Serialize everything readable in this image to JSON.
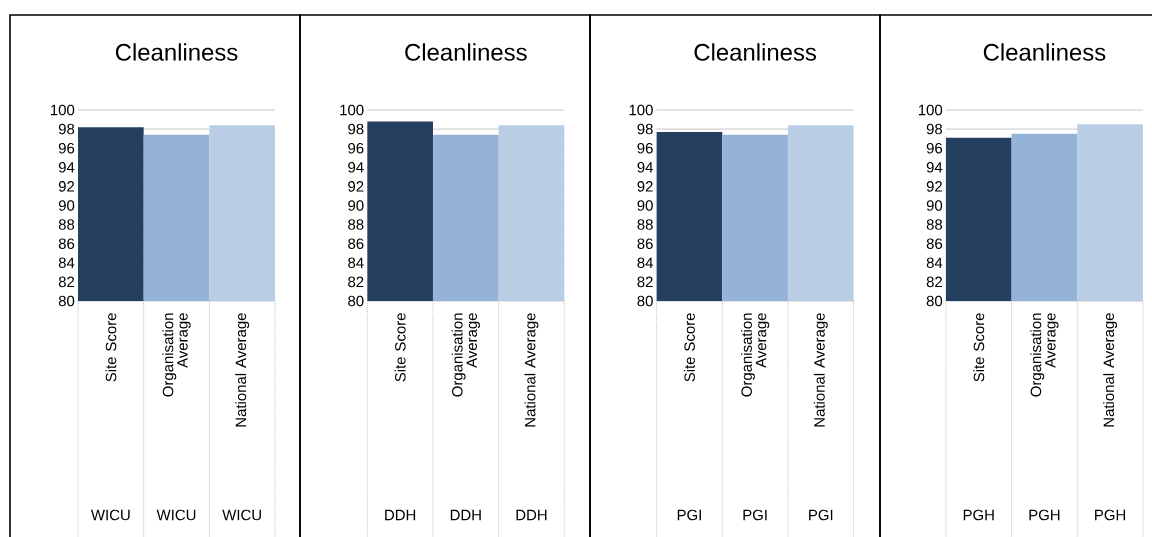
{
  "chart_data": [
    {
      "type": "bar",
      "title": "Cleanliness",
      "categories": [
        "Site Score",
        "Organisation Average",
        "National Average"
      ],
      "values": [
        98.2,
        97.4,
        98.4
      ],
      "colors": [
        "#243f60",
        "#95b3d7",
        "#b9cde5"
      ],
      "ylim": [
        80,
        100
      ],
      "yticks": [
        80,
        82,
        84,
        86,
        88,
        90,
        92,
        94,
        96,
        98,
        100
      ],
      "grid": "y",
      "annotations": [
        "WICU",
        "WICU",
        "WICU"
      ]
    },
    {
      "type": "bar",
      "title": "Cleanliness",
      "categories": [
        "Site Score",
        "Organisation Average",
        "National Average"
      ],
      "values": [
        98.8,
        97.4,
        98.4
      ],
      "colors": [
        "#243f60",
        "#95b3d7",
        "#b9cde5"
      ],
      "ylim": [
        80,
        100
      ],
      "yticks": [
        80,
        82,
        84,
        86,
        88,
        90,
        92,
        94,
        96,
        98,
        100
      ],
      "grid": "y",
      "annotations": [
        "DDH",
        "DDH",
        "DDH"
      ]
    },
    {
      "type": "bar",
      "title": "Cleanliness",
      "categories": [
        "Site Score",
        "Organisation Average",
        "National Average"
      ],
      "values": [
        97.7,
        97.4,
        98.4
      ],
      "colors": [
        "#243f60",
        "#95b3d7",
        "#b9cde5"
      ],
      "ylim": [
        80,
        100
      ],
      "yticks": [
        80,
        82,
        84,
        86,
        88,
        90,
        92,
        94,
        96,
        98,
        100
      ],
      "grid": "y",
      "annotations": [
        "PGI",
        "PGI",
        "PGI"
      ]
    },
    {
      "type": "bar",
      "title": "Cleanliness",
      "categories": [
        "Site Score",
        "Organisation Average",
        "National Average"
      ],
      "values": [
        97.1,
        97.5,
        98.5
      ],
      "colors": [
        "#243f60",
        "#95b3d7",
        "#b9cde5"
      ],
      "ylim": [
        80,
        100
      ],
      "yticks": [
        80,
        82,
        84,
        86,
        88,
        90,
        92,
        94,
        96,
        98,
        100
      ],
      "grid": "y",
      "annotations": [
        "PGH",
        "PGH",
        "PGH"
      ]
    }
  ]
}
